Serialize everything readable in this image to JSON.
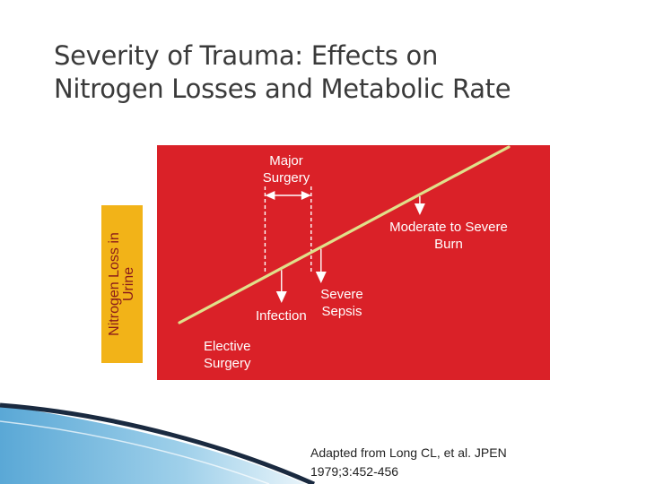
{
  "title_lines": [
    "Severity of Trauma: Effects on",
    "Nitrogen Losses and Metabolic Rate"
  ],
  "note_lines": [
    "Adapted from Long CL, et al. JPEN",
    "1979;3:452-456"
  ],
  "chart_data": {
    "type": "line",
    "title": "",
    "xlabel": "",
    "ylabel": "Nitrogen Loss in Urine",
    "ylabel_visible_lines": [
      "Nitrogen Loss in",
      "Urine"
    ],
    "grid": false,
    "legend": "none",
    "x_range": [
      0,
      100
    ],
    "y_range": [
      0,
      100
    ],
    "series": [
      {
        "x": [
          0,
          100
        ],
        "y": [
          0,
          100
        ]
      }
    ],
    "annotations": [
      {
        "label_lines": [
          "Major",
          "Surgery"
        ],
        "x_start": 26,
        "x_end": 40
      },
      {
        "label_lines": [
          "Elective",
          "Surgery"
        ],
        "x": 22
      },
      {
        "label_lines": [
          "Infection"
        ],
        "x": 31
      },
      {
        "label_lines": [
          "Severe",
          "Sepsis"
        ],
        "x": 43
      },
      {
        "label_lines": [
          "Moderate to Severe",
          "Burn"
        ],
        "x": 73
      }
    ]
  },
  "colors": {
    "panel": "#da2128",
    "trend_line": "#e0e08a",
    "ylabel_bar": "#f2b318",
    "marker": "#ffffff"
  }
}
